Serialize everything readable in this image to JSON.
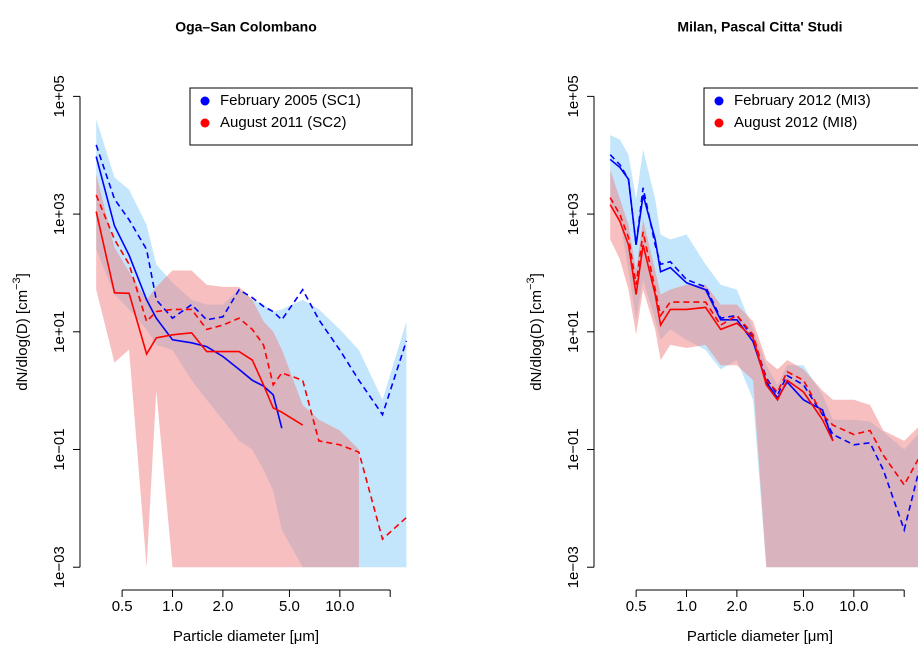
{
  "chart_data": [
    {
      "type": "line",
      "title": "Oga–San Colombano",
      "xlabel": "Particle diameter [μm]",
      "ylabel": [
        "dN/dlog(D) [cm",
        "−3",
        "]"
      ],
      "log_x": true,
      "log_y": true,
      "legend": "topright",
      "band_opacity": 0.5,
      "xlim": [
        0.28,
        27
      ],
      "ylim": [
        0.00041,
        240000
      ],
      "xticks": [
        0.5,
        {
          "value": 1,
          "label": "1.0"
        },
        {
          "value": 2,
          "label": "2.0"
        },
        {
          "value": 5,
          "label": "5.0"
        },
        {
          "value": 10,
          "label": "10.0"
        },
        {
          "value": 20,
          "label": null
        }
      ],
      "yticks": [
        {
          "value": 0.001,
          "label": "1e−03"
        },
        {
          "value": 0.1,
          "label": "1e−01"
        },
        {
          "value": 10,
          "label": "1e+01"
        },
        {
          "value": 1000,
          "label": "1e+03"
        },
        {
          "value": 100000,
          "label": "1e+05"
        }
      ],
      "x": [
        0.35,
        0.45,
        0.55,
        0.7,
        0.8,
        1.0,
        1.3,
        1.6,
        2.0,
        2.5,
        3.0,
        3.5,
        4.0,
        4.5,
        6.0,
        7.5,
        10,
        13,
        18,
        25
      ],
      "series": [
        {
          "name": "February 2005 (SC1)",
          "color": "#0000ff",
          "band_color": "#87cefa",
          "median": [
            9500,
            630,
            200,
            35,
            17,
            7.3,
            6.5,
            5.6,
            3.8,
            2.3,
            1.5,
            1.2,
            0.85,
            0.23,
            null,
            null,
            null,
            null,
            null,
            null
          ],
          "mean": [
            15000,
            1800,
            800,
            250,
            35,
            17,
            29,
            16,
            18,
            52,
            38,
            27,
            22,
            16,
            52,
            16,
            4.9,
            1.5,
            0.39,
            7
          ],
          "upper": [
            41000,
            4200,
            2600,
            660,
            140,
            68,
            35,
            29,
            29,
            52,
            35,
            29,
            22,
            24,
            35,
            24,
            11,
            4.9,
            0.7,
            15
          ],
          "lower": [
            250,
            43,
            24,
            11,
            6,
            4.9,
            1.5,
            0.7,
            0.32,
            0.14,
            0.1,
            0.045,
            0.02,
            0.0043,
            0.001,
            0.001,
            0.001,
            0.001,
            0.001,
            0.001
          ]
        },
        {
          "name": "August 2011 (SC2)",
          "color": "#ff0000",
          "band_color": "#f08080",
          "median": [
            1100,
            46,
            45,
            4.2,
            7.9,
            8.9,
            9.6,
            4.6,
            4.6,
            4.6,
            3.3,
            1.25,
            0.51,
            0.43,
            0.26,
            null,
            null,
            null,
            null,
            null
          ],
          "mean": [
            2100,
            370,
            140,
            15,
            22,
            24,
            24,
            11,
            13,
            17,
            11,
            6,
            1.25,
            2,
            1.5,
            0.14,
            0.12,
            0.09,
            0.003,
            0.007
          ],
          "upper": [
            4700,
            270,
            105,
            35,
            58,
            110,
            110,
            63,
            58,
            58,
            35,
            15,
            10,
            5,
            0.57,
            0.32,
            0.21,
            0.1,
            null,
            null
          ],
          "lower": [
            52,
            3,
            5,
            0.001,
            1,
            0.001,
            0.001,
            0.001,
            0.001,
            0.001,
            0.001,
            0.001,
            0.001,
            0.001,
            0.001,
            0.001,
            0.001,
            0.001,
            null,
            null
          ]
        }
      ]
    },
    {
      "type": "line",
      "title": "Milan, Pascal Citta' Studi",
      "xlabel": "Particle diameter [μm]",
      "ylabel": [
        "dN/dlog(D) [cm",
        "−3",
        "]"
      ],
      "log_x": true,
      "log_y": true,
      "legend": "topright",
      "band_opacity": 0.5,
      "xlim": [
        0.28,
        27
      ],
      "ylim": [
        0.00041,
        240000
      ],
      "xticks": [
        0.5,
        {
          "value": 1,
          "label": "1.0"
        },
        {
          "value": 2,
          "label": "2.0"
        },
        {
          "value": 5,
          "label": "5.0"
        },
        {
          "value": 10,
          "label": "10.0"
        },
        {
          "value": 20,
          "label": null
        }
      ],
      "yticks": [
        {
          "value": 0.001,
          "label": "1e−03"
        },
        {
          "value": 0.1,
          "label": "1e−01"
        },
        {
          "value": 10,
          "label": "1e+01"
        },
        {
          "value": 1000,
          "label": "1e+03"
        },
        {
          "value": 100000,
          "label": "1e+05"
        }
      ],
      "x": [
        0.35,
        0.4,
        0.45,
        0.5,
        0.55,
        0.65,
        0.7,
        0.8,
        1.0,
        1.3,
        1.6,
        2.0,
        2.5,
        3.0,
        3.5,
        4.0,
        5.0,
        6.5,
        7.5,
        10,
        12.5,
        15,
        20,
        25
      ],
      "series": [
        {
          "name": "February 2012 (MI3)",
          "color": "#0000ff",
          "band_color": "#87cefa",
          "median": [
            8500,
            6200,
            3900,
            300,
            2100,
            370,
            105,
            123,
            68,
            52,
            16,
            16,
            6.8,
            1.4,
            0.75,
            1.4,
            0.7,
            0.47,
            0.14,
            null,
            null,
            null,
            null,
            null
          ],
          "mean": [
            10200,
            6900,
            3900,
            300,
            2800,
            300,
            140,
            155,
            77,
            58,
            17,
            19,
            7.9,
            1.65,
            0.85,
            1.8,
            1.25,
            0.39,
            0.18,
            0.12,
            0.13,
            0.045,
            0.0043,
            0.055
          ],
          "upper": [
            22000,
            18500,
            10200,
            1800,
            12500,
            1800,
            450,
            370,
            450,
            140,
            63,
            52,
            11,
            2.7,
            1.25,
            2.7,
            2.7,
            0.85,
            0.32,
            0.32,
            0.3,
            0.2,
            0.1,
            0.2
          ],
          "lower": [
            1450,
            800,
            110,
            16,
            77,
            16,
            7.3,
            11,
            7.3,
            4.9,
            2.3,
            3.3,
            0.7,
            0.001,
            0.001,
            0.001,
            0.001,
            0.001,
            0.001,
            0.001,
            0.001,
            0.001,
            0.001,
            0.001
          ]
        },
        {
          "name": "August 2012 (MI8)",
          "color": "#ff0000",
          "band_color": "#f08080",
          "median": [
            1450,
            750,
            300,
            43,
            300,
            43,
            13,
            24,
            24,
            26,
            11,
            14,
            7.9,
            1.25,
            0.7,
            1.5,
            0.95,
            0.32,
            0.14,
            null,
            null,
            null,
            null,
            null
          ],
          "mean": [
            1900,
            980,
            400,
            63,
            500,
            52,
            19,
            32,
            32,
            32,
            13,
            19,
            8.9,
            1.5,
            0.95,
            2.1,
            1.5,
            0.39,
            0.26,
            0.18,
            0.21,
            0.08,
            0.025,
            0.08
          ],
          "upper": [
            5700,
            1800,
            660,
            110,
            800,
            110,
            43,
            52,
            63,
            63,
            29,
            29,
            15,
            3.3,
            2.3,
            3.3,
            2.3,
            1.0,
            0.7,
            0.7,
            0.57,
            0.21,
            0.14,
            0.26
          ],
          "lower": [
            370,
            170,
            52,
            9,
            52,
            11,
            3.3,
            6,
            5.3,
            6,
            2.7,
            2.7,
            1.5,
            0.001,
            0.001,
            0.001,
            0.001,
            0.001,
            0.001,
            0.001,
            0.001,
            0.001,
            0.001,
            0.001
          ]
        }
      ]
    }
  ]
}
